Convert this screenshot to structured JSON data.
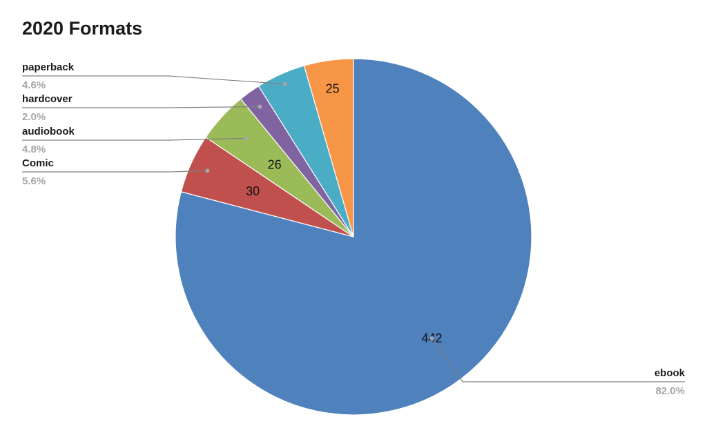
{
  "chart_data": {
    "type": "pie",
    "title": "2020 Formats",
    "start_angle_deg": 0,
    "direction": "clockwise",
    "slices": [
      {
        "name": "ebook",
        "value": 442,
        "value_label": "442",
        "percent_label": "82.0%",
        "color": "#4f81bd"
      },
      {
        "name": "Comic",
        "value": 30,
        "value_label": "30",
        "percent_label": "5.6%",
        "color": "#c0504d"
      },
      {
        "name": "audiobook",
        "value": 26,
        "value_label": "26",
        "percent_label": "4.8%",
        "color": "#9bbb59"
      },
      {
        "name": "hardcover",
        "value": 11,
        "value_label": "",
        "percent_label": "2.0%",
        "color": "#8064a2"
      },
      {
        "name": "paperback",
        "value": 25,
        "value_label": "",
        "percent_label": "4.6%",
        "color": "#4bacc6"
      },
      {
        "name": "",
        "value": 25,
        "value_label": "25",
        "percent_label": "",
        "color": "#f79646"
      }
    ],
    "leader_line_color": "#7f7f7f",
    "dot_color": "#a6a6a6"
  }
}
